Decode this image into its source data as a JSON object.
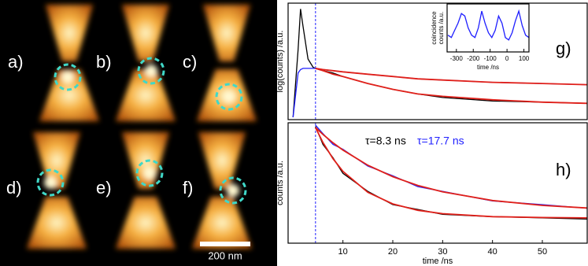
{
  "images": {
    "labels": [
      "a)",
      "b)",
      "c)",
      "d)",
      "e)",
      "f)"
    ],
    "scale_bar": "200 nm"
  },
  "chart_data": [
    {
      "type": "line",
      "label": "g)",
      "ylabel": "log(counts) /a.u.",
      "xlim": [
        -1,
        59
      ],
      "ylim": [
        0,
        1
      ],
      "vline": 4.5,
      "x": [
        0,
        1,
        1.5,
        2,
        3,
        4,
        4.5,
        6,
        8,
        10,
        15,
        20,
        25,
        30,
        40,
        50,
        59
      ],
      "series": [
        {
          "color": "#000000",
          "values": [
            0.02,
            0.6,
            0.95,
            0.8,
            0.52,
            0.45,
            0.44,
            0.42,
            0.4,
            0.37,
            0.31,
            0.26,
            0.22,
            0.19,
            0.16,
            0.15,
            0.14
          ]
        },
        {
          "color": "#1f1fff",
          "values": [
            0.02,
            0.4,
            0.43,
            0.44,
            0.44,
            0.44,
            0.44,
            0.43,
            0.42,
            0.41,
            0.39,
            0.37,
            0.35,
            0.34,
            0.32,
            0.31,
            0.3
          ]
        },
        {
          "color": "#e0201a",
          "values": [
            null,
            null,
            null,
            null,
            null,
            null,
            0.44,
            0.42,
            0.39,
            0.37,
            0.31,
            0.26,
            0.22,
            0.2,
            0.17,
            0.15,
            0.14
          ]
        },
        {
          "color": "#e0201a",
          "values": [
            null,
            null,
            null,
            null,
            null,
            null,
            0.44,
            0.43,
            0.42,
            0.41,
            0.39,
            0.37,
            0.35,
            0.34,
            0.32,
            0.31,
            0.3
          ]
        }
      ]
    },
    {
      "type": "line",
      "label": "h)",
      "ylabel": "counts /a.u.",
      "xlabel": "time /ns",
      "xlim": [
        -1,
        59
      ],
      "ylim": [
        0,
        1
      ],
      "vline": 4.5,
      "xticks": [
        10,
        20,
        30,
        40,
        50
      ],
      "annotations": [
        {
          "text": "τ=8.3 ns",
          "color": "#000000"
        },
        {
          "text": "τ=17.7 ns",
          "color": "#1f1fff"
        }
      ],
      "x": [
        4.5,
        6,
        8,
        10,
        15,
        20,
        25,
        30,
        40,
        50,
        59
      ],
      "series": [
        {
          "color": "#000000",
          "values": [
            0.97,
            0.82,
            0.71,
            0.58,
            0.43,
            0.32,
            0.28,
            0.24,
            0.22,
            0.21,
            0.2
          ]
        },
        {
          "color": "#1f1fff",
          "values": [
            0.98,
            0.91,
            0.82,
            0.78,
            0.64,
            0.56,
            0.47,
            0.43,
            0.35,
            0.32,
            0.29
          ]
        },
        {
          "color": "#e0201a",
          "values": [
            0.96,
            0.836,
            0.702,
            0.596,
            0.422,
            0.326,
            0.273,
            0.245,
            0.22,
            0.213,
            0.21
          ]
        },
        {
          "color": "#e0201a",
          "values": [
            0.96,
            0.903,
            0.834,
            0.773,
            0.647,
            0.552,
            0.48,
            0.426,
            0.354,
            0.314,
            0.292
          ]
        }
      ]
    },
    {
      "type": "line",
      "ylabel": [
        "coincidence",
        "counts /a.u."
      ],
      "xlabel": "time /ns",
      "xlim": [
        -355,
        130
      ],
      "ylim": [
        0,
        1
      ],
      "xticks": [
        -300,
        -200,
        -100,
        0,
        100
      ],
      "x": [
        -350,
        -330,
        -310,
        -290,
        -270,
        -250,
        -230,
        -210,
        -190,
        -170,
        -150,
        -130,
        -110,
        -90,
        -70,
        -50,
        -30,
        -10,
        10,
        30,
        50,
        70,
        90,
        110,
        130
      ],
      "series": [
        {
          "color": "#1f1fff",
          "values": [
            0.35,
            0.3,
            0.45,
            0.6,
            0.8,
            0.75,
            0.5,
            0.35,
            0.3,
            0.5,
            0.85,
            0.6,
            0.4,
            0.3,
            0.45,
            0.75,
            0.6,
            0.3,
            0.25,
            0.4,
            0.65,
            0.85,
            0.55,
            0.35,
            0.3
          ]
        }
      ]
    }
  ]
}
